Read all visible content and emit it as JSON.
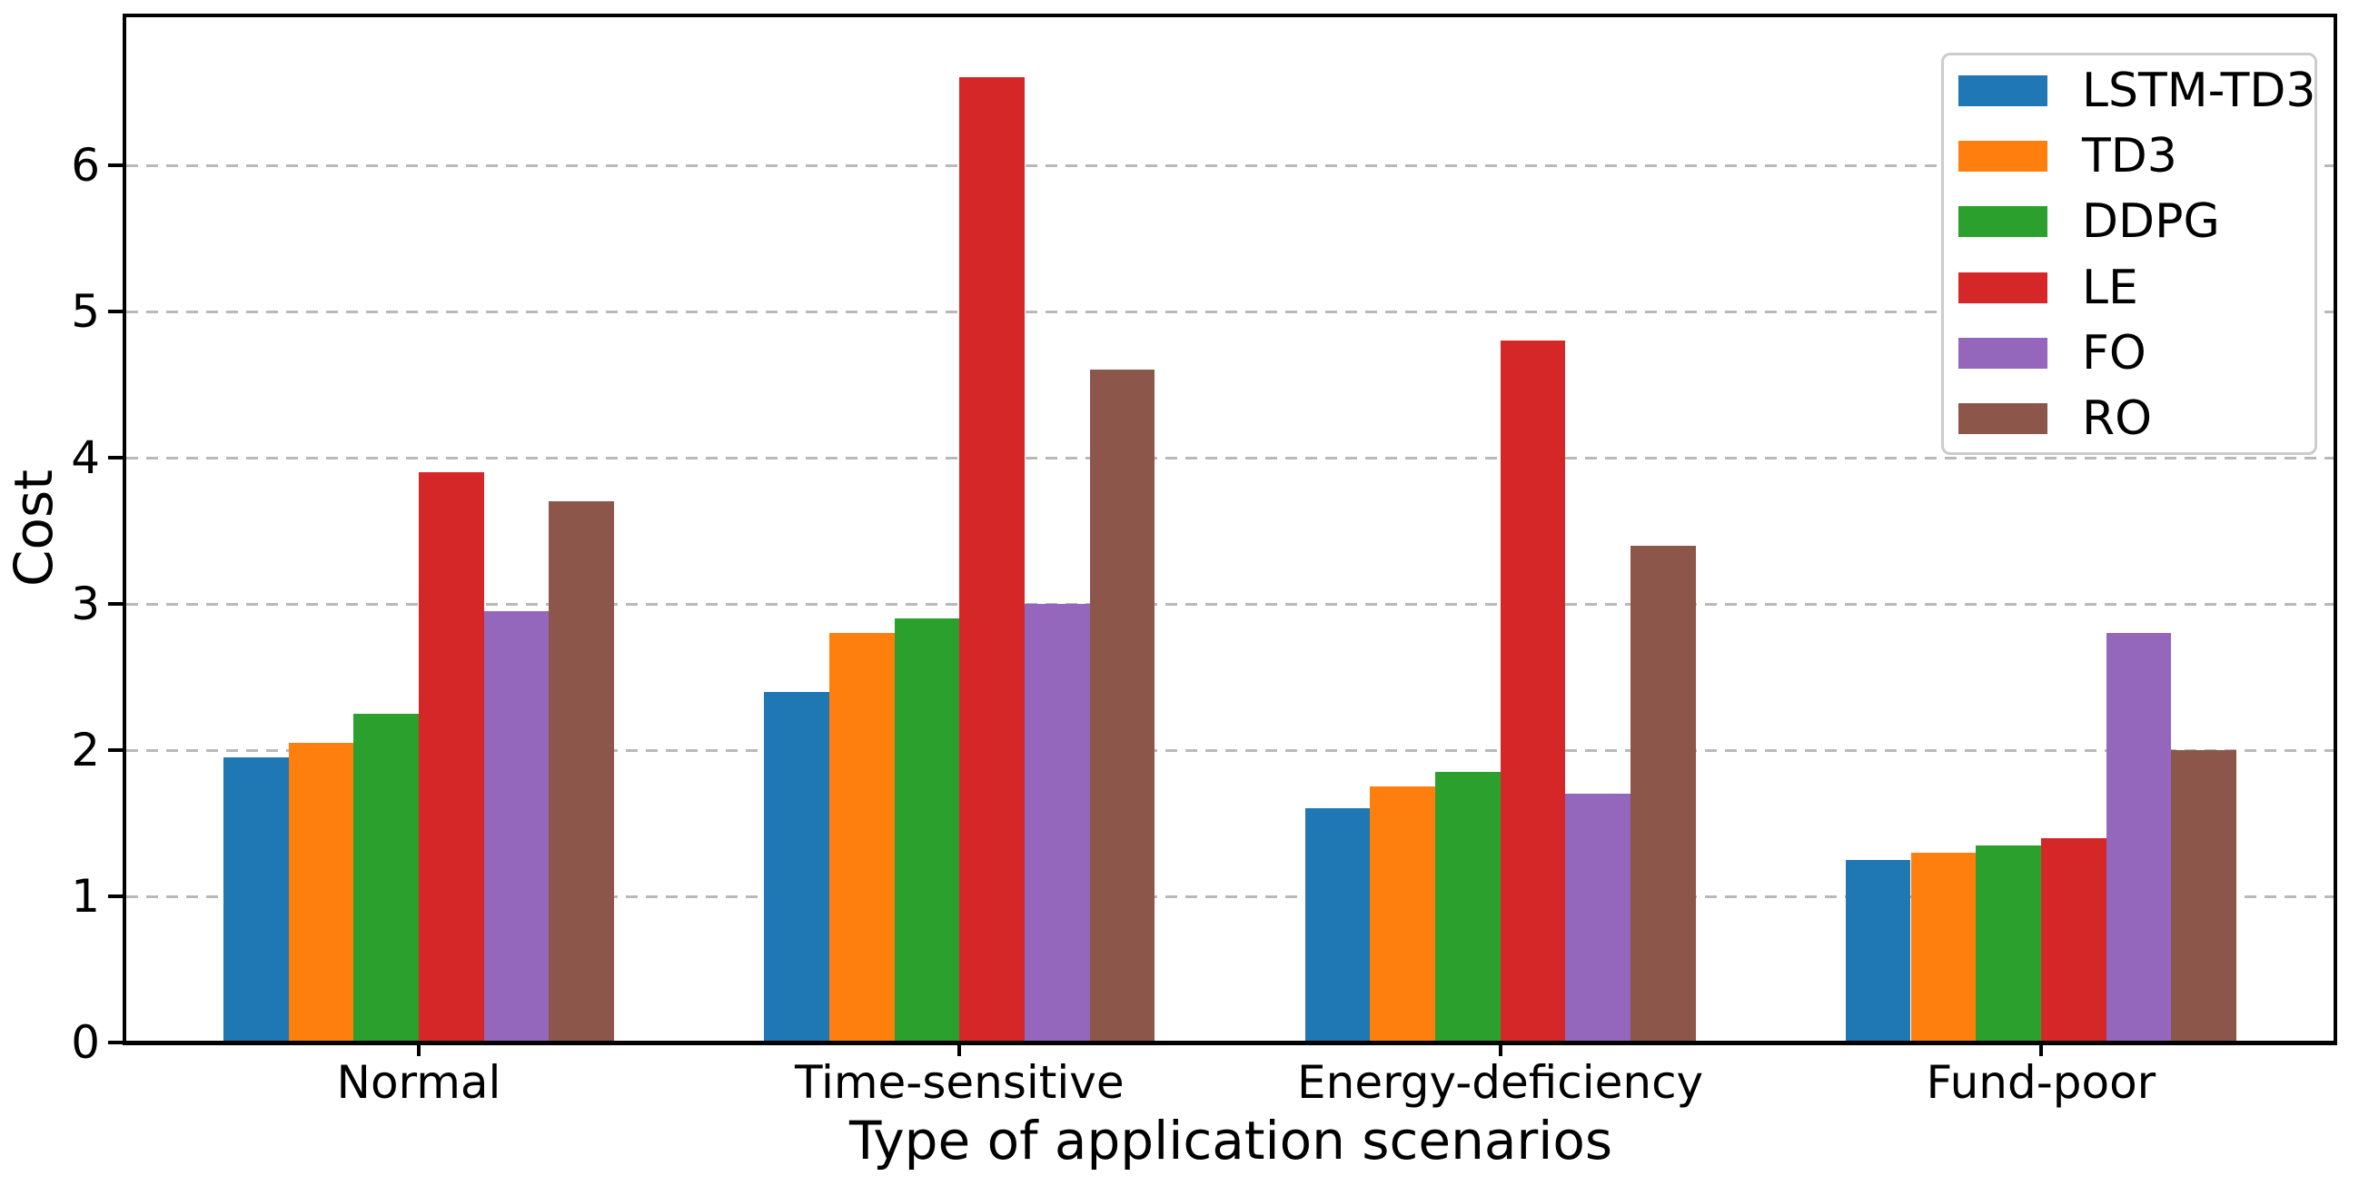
{
  "chart_data": {
    "type": "bar",
    "title": "",
    "xlabel": "Type of application scenarios",
    "ylabel": "Cost",
    "categories": [
      "Normal",
      "Time-sensitive",
      "Energy-deficiency",
      "Fund-poor"
    ],
    "series": [
      {
        "name": "LSTM-TD3",
        "color": "#1f77b4",
        "values": [
          1.95,
          2.4,
          1.6,
          1.25
        ]
      },
      {
        "name": "TD3",
        "color": "#ff7f0e",
        "values": [
          2.05,
          2.8,
          1.75,
          1.3
        ]
      },
      {
        "name": "DDPG",
        "color": "#2ca02c",
        "values": [
          2.25,
          2.9,
          1.85,
          1.35
        ]
      },
      {
        "name": "LE",
        "color": "#d62728",
        "values": [
          3.9,
          6.6,
          4.8,
          1.4
        ]
      },
      {
        "name": "FO",
        "color": "#9467bd",
        "values": [
          2.95,
          3.0,
          1.7,
          2.8
        ]
      },
      {
        "name": "RO",
        "color": "#8c564b",
        "values": [
          3.7,
          4.6,
          3.4,
          2.0
        ]
      }
    ],
    "yticks": [
      "0",
      "1",
      "2",
      "3",
      "4",
      "5",
      "6"
    ],
    "ylim": [
      0,
      7.04
    ],
    "grid": "horizontal-dashed",
    "grid_color": "#b9b9b9",
    "axis_color": "#000000",
    "legend_position": "upper-right"
  }
}
